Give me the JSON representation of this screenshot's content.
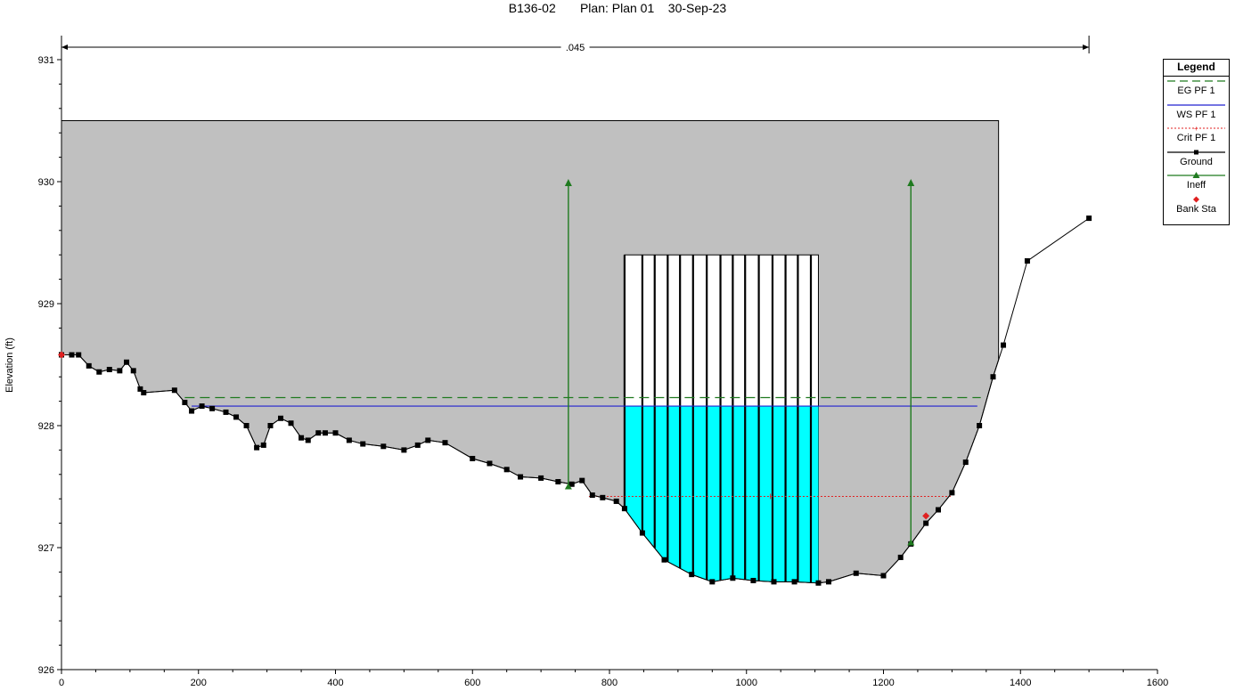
{
  "chart_data": {
    "type": "line",
    "title": "B136-02       Plan: Plan 01    30-Sep-23",
    "ylabel": "Elevation (ft)",
    "xlabel": "",
    "xlim": [
      0,
      1600
    ],
    "ylim": [
      926,
      931
    ],
    "x_ticks": [
      "0",
      "200",
      "400",
      "600",
      "800",
      "1000",
      "1200",
      "1400",
      "1600"
    ],
    "y_ticks": [
      "926",
      "927",
      "928",
      "929",
      "930",
      "931"
    ],
    "manning_label": ".045",
    "manning_extent": [
      0,
      1500
    ],
    "deck": {
      "x_range": [
        0,
        1368
      ],
      "top": 930.5
    },
    "bridge_opening": {
      "x_range": [
        822,
        1105
      ],
      "top": 929.4,
      "piers": [
        822,
        848,
        866,
        885,
        903,
        922,
        942,
        962,
        980,
        998,
        1018,
        1038,
        1057,
        1075,
        1094
      ]
    },
    "series": [
      {
        "name": "EG PF 1",
        "color": "#1f7a1f",
        "style": "dashed",
        "x": [
          180,
          1342
        ],
        "y": [
          928.23,
          928.23
        ]
      },
      {
        "name": "WS PF 1",
        "color": "#2020d0",
        "style": "solid",
        "x": [
          190,
          1337
        ],
        "y": [
          928.16,
          928.16
        ]
      },
      {
        "name": "Crit PF 1",
        "color": "#e02020",
        "style": "dotted",
        "x": [
          770,
          1300
        ],
        "y": [
          927.42,
          927.42
        ]
      },
      {
        "name": "Ground",
        "color": "#000000",
        "style": "solid-squares",
        "x": [
          0,
          15,
          25,
          40,
          55,
          70,
          85,
          95,
          105,
          115,
          120,
          165,
          180,
          190,
          205,
          220,
          240,
          255,
          270,
          285,
          295,
          305,
          320,
          335,
          350,
          360,
          375,
          385,
          400,
          420,
          440,
          470,
          500,
          520,
          535,
          560,
          600,
          625,
          650,
          670,
          700,
          725,
          745,
          760,
          775,
          790,
          810,
          822,
          848,
          880,
          920,
          950,
          980,
          1010,
          1040,
          1070,
          1105,
          1120,
          1160,
          1200,
          1225,
          1240,
          1262,
          1280,
          1300,
          1320,
          1340,
          1360,
          1375,
          1410,
          1500
        ],
        "y": [
          928.58,
          928.58,
          928.58,
          928.49,
          928.44,
          928.46,
          928.45,
          928.52,
          928.45,
          928.3,
          928.27,
          928.29,
          928.19,
          928.12,
          928.16,
          928.14,
          928.11,
          928.07,
          928.0,
          927.82,
          927.84,
          928.0,
          928.06,
          928.02,
          927.9,
          927.88,
          927.94,
          927.94,
          927.94,
          927.88,
          927.85,
          927.83,
          927.8,
          927.84,
          927.88,
          927.86,
          927.73,
          927.69,
          927.64,
          927.58,
          927.57,
          927.54,
          927.52,
          927.55,
          927.43,
          927.41,
          927.38,
          927.32,
          927.12,
          926.9,
          926.78,
          926.72,
          926.75,
          926.73,
          926.72,
          926.72,
          926.71,
          926.72,
          926.79,
          926.77,
          926.92,
          927.03,
          927.2,
          927.31,
          927.45,
          927.7,
          928.0,
          928.4,
          928.66,
          929.35,
          929.7
        ]
      },
      {
        "name": "Ineff",
        "color": "#1f7a1f",
        "style": "stems",
        "x": [
          740,
          1240
        ],
        "y_base": [
          927.5,
          927.04
        ],
        "y_top": [
          930.0,
          930.0
        ]
      },
      {
        "name": "Bank Sta",
        "color": "#e02020",
        "style": "points",
        "x": [
          0,
          1262
        ],
        "y": [
          928.58,
          927.26
        ]
      }
    ],
    "legend": {
      "title": "Legend",
      "placement": "right",
      "items": [
        "EG PF 1",
        "WS PF 1",
        "Crit PF 1",
        "Ground",
        "Ineff",
        "Bank Sta"
      ]
    },
    "colors": {
      "fill_gray": "#c0c0c0",
      "water": "#00ffff"
    }
  }
}
